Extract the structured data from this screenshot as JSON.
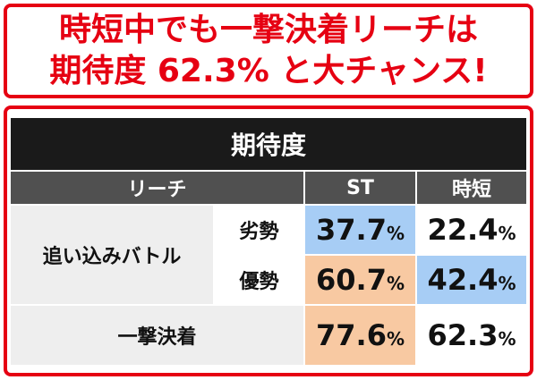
{
  "headline": {
    "lines": [
      "時短中でも一撃決着リーチは",
      "期待度 62.3% と大チャンス!"
    ]
  },
  "table": {
    "title": "期待度",
    "columns": [
      "リーチ",
      "ST",
      "時短"
    ],
    "rows": [
      {
        "group": "追い込みバトル",
        "label": "劣勢",
        "cells": [
          {
            "number": "37.7",
            "unit": "%"
          },
          {
            "number": "22.4",
            "unit": "%"
          }
        ]
      },
      {
        "label": "優勢",
        "cells": [
          {
            "number": "60.7",
            "unit": "%"
          },
          {
            "number": "42.4",
            "unit": "%"
          }
        ]
      },
      {
        "group": "一撃決着",
        "cells": [
          {
            "number": "77.6",
            "unit": "%"
          },
          {
            "number": "62.3",
            "unit": "%"
          }
        ]
      }
    ]
  }
}
